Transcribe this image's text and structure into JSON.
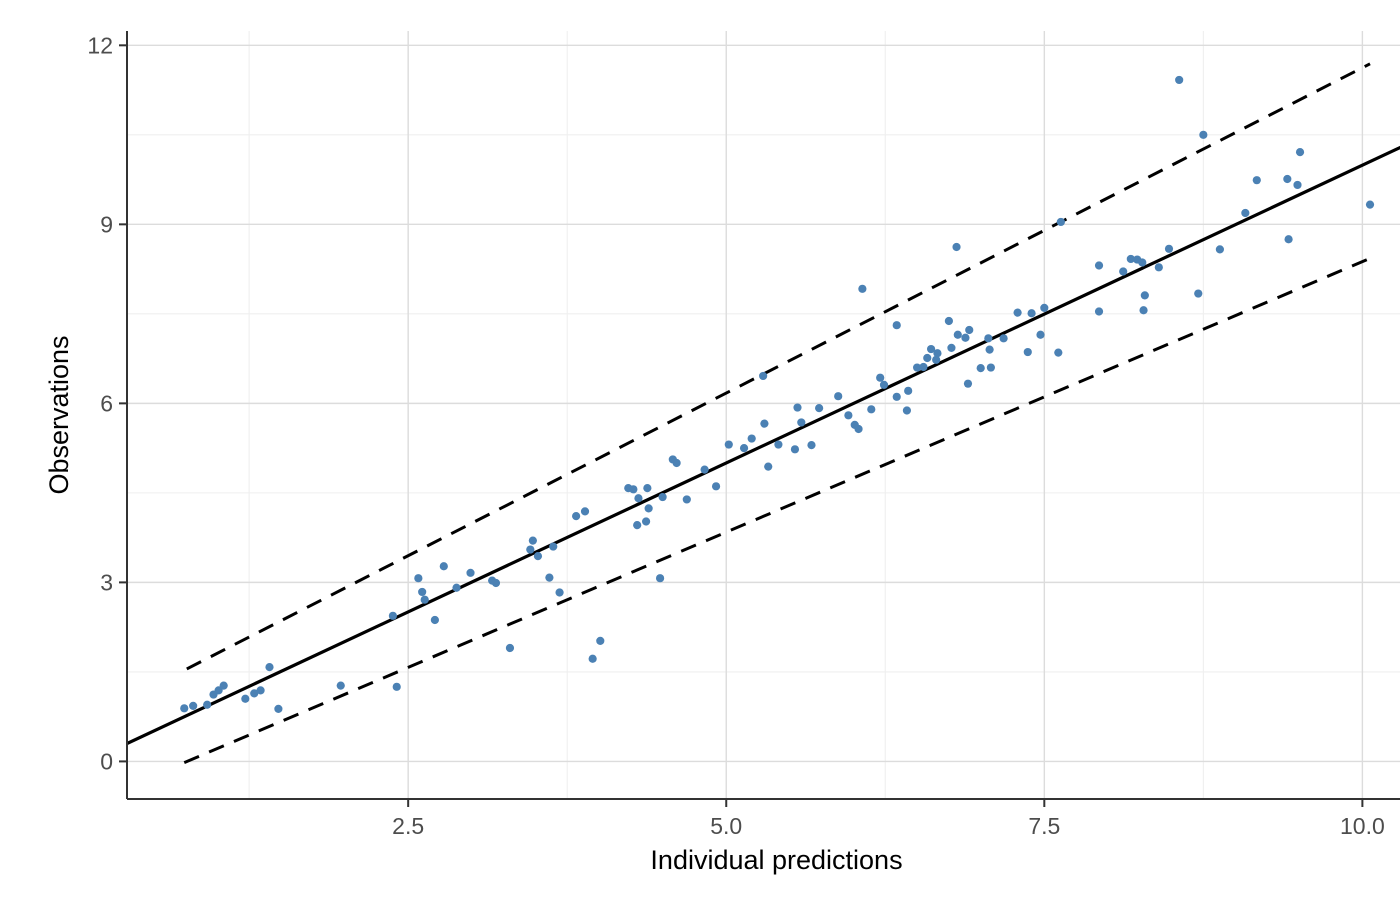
{
  "chart_data": {
    "type": "scatter",
    "title": "",
    "xlabel": "Individual predictions",
    "ylabel": "Observations",
    "x_tick_values": [
      2.5,
      5.0,
      7.5,
      10.0
    ],
    "x_tick_labels": [
      "2.5",
      "5.0",
      "7.5",
      "10.0"
    ],
    "x_minor_tick_values": [
      1.25,
      3.75,
      6.25,
      8.75
    ],
    "y_tick_values": [
      0,
      3,
      6,
      9,
      12
    ],
    "y_tick_labels": [
      "0",
      "3",
      "6",
      "9",
      "12"
    ],
    "y_minor_tick_values": [
      1.5,
      4.5,
      7.5,
      10.5
    ],
    "xlim": [
      0.29,
      10.5
    ],
    "ylim": [
      -0.63,
      12.24
    ],
    "grid": true,
    "legend_position": "none",
    "colors": {
      "point": "#4B81B4",
      "line": "#000000",
      "grid_major": "#DCDCDC",
      "grid_minor": "#EFEFEF",
      "axis_line": "#333333",
      "tick_mark": "#333333",
      "tick_label": "#4D4D4D",
      "axis_title": "#000000",
      "background": "#FFFFFF"
    },
    "lines": [
      {
        "name": "identity-line",
        "style": "solid",
        "points": [
          [
            0.29,
            0.3
          ],
          [
            10.5,
            10.49
          ]
        ]
      },
      {
        "name": "upper-prediction-interval",
        "style": "dashed",
        "points": [
          [
            0.76,
            1.55
          ],
          [
            10.06,
            11.69
          ]
        ]
      },
      {
        "name": "lower-prediction-interval",
        "style": "dashed",
        "points": [
          [
            0.74,
            -0.02
          ],
          [
            10.06,
            8.43
          ]
        ]
      }
    ],
    "points": [
      [
        0.74,
        0.89
      ],
      [
        0.81,
        0.93
      ],
      [
        0.92,
        0.95
      ],
      [
        0.97,
        1.12
      ],
      [
        1.01,
        1.19
      ],
      [
        1.05,
        1.27
      ],
      [
        1.22,
        1.05
      ],
      [
        1.29,
        1.14
      ],
      [
        1.34,
        1.19
      ],
      [
        1.41,
        1.58
      ],
      [
        1.48,
        0.88
      ],
      [
        1.97,
        1.27
      ],
      [
        2.38,
        2.44
      ],
      [
        2.41,
        1.25
      ],
      [
        2.58,
        3.07
      ],
      [
        2.61,
        2.84
      ],
      [
        2.63,
        2.71
      ],
      [
        2.71,
        2.37
      ],
      [
        2.78,
        3.27
      ],
      [
        2.88,
        2.91
      ],
      [
        2.99,
        3.16
      ],
      [
        3.16,
        3.03
      ],
      [
        3.19,
        2.99
      ],
      [
        3.3,
        1.9
      ],
      [
        3.46,
        3.55
      ],
      [
        3.48,
        3.7
      ],
      [
        3.52,
        3.44
      ],
      [
        3.61,
        3.08
      ],
      [
        3.64,
        3.6
      ],
      [
        3.69,
        2.83
      ],
      [
        3.82,
        4.11
      ],
      [
        3.89,
        4.19
      ],
      [
        3.95,
        1.72
      ],
      [
        4.01,
        2.02
      ],
      [
        4.23,
        4.58
      ],
      [
        4.27,
        4.56
      ],
      [
        4.3,
        3.96
      ],
      [
        4.31,
        4.41
      ],
      [
        4.37,
        4.02
      ],
      [
        4.38,
        4.58
      ],
      [
        4.39,
        4.24
      ],
      [
        4.48,
        3.07
      ],
      [
        4.5,
        4.43
      ],
      [
        4.58,
        5.06
      ],
      [
        4.61,
        5.0
      ],
      [
        4.69,
        4.39
      ],
      [
        4.83,
        4.89
      ],
      [
        4.92,
        4.61
      ],
      [
        5.02,
        5.31
      ],
      [
        5.14,
        5.25
      ],
      [
        5.2,
        5.41
      ],
      [
        5.29,
        6.46
      ],
      [
        5.3,
        5.66
      ],
      [
        5.33,
        4.94
      ],
      [
        5.41,
        5.31
      ],
      [
        5.54,
        5.23
      ],
      [
        5.56,
        5.93
      ],
      [
        5.59,
        5.68
      ],
      [
        5.67,
        5.3
      ],
      [
        5.73,
        5.92
      ],
      [
        5.88,
        6.12
      ],
      [
        5.96,
        5.8
      ],
      [
        6.01,
        5.64
      ],
      [
        6.04,
        5.57
      ],
      [
        6.07,
        7.92
      ],
      [
        6.14,
        5.9
      ],
      [
        6.21,
        6.43
      ],
      [
        6.24,
        6.31
      ],
      [
        6.34,
        7.31
      ],
      [
        6.34,
        6.11
      ],
      [
        6.42,
        5.88
      ],
      [
        6.43,
        6.21
      ],
      [
        6.5,
        6.6
      ],
      [
        6.55,
        6.61
      ],
      [
        6.58,
        6.76
      ],
      [
        6.61,
        6.91
      ],
      [
        6.65,
        6.73
      ],
      [
        6.66,
        6.84
      ],
      [
        6.77,
        6.93
      ],
      [
        6.75,
        7.38
      ],
      [
        6.81,
        8.62
      ],
      [
        6.82,
        7.15
      ],
      [
        6.88,
        7.1
      ],
      [
        6.9,
        6.33
      ],
      [
        6.91,
        7.23
      ],
      [
        7.0,
        6.59
      ],
      [
        7.06,
        7.09
      ],
      [
        7.07,
        6.9
      ],
      [
        7.08,
        6.6
      ],
      [
        7.18,
        7.09
      ],
      [
        7.29,
        7.52
      ],
      [
        7.37,
        6.86
      ],
      [
        7.4,
        7.51
      ],
      [
        7.47,
        7.15
      ],
      [
        7.5,
        7.6
      ],
      [
        7.61,
        6.85
      ],
      [
        7.63,
        9.04
      ],
      [
        7.93,
        8.31
      ],
      [
        7.93,
        7.54
      ],
      [
        8.12,
        8.21
      ],
      [
        8.18,
        8.42
      ],
      [
        8.23,
        8.41
      ],
      [
        8.27,
        8.36
      ],
      [
        8.28,
        7.56
      ],
      [
        8.29,
        7.81
      ],
      [
        8.4,
        8.28
      ],
      [
        8.48,
        8.59
      ],
      [
        8.56,
        11.42
      ],
      [
        8.71,
        7.84
      ],
      [
        8.75,
        10.5
      ],
      [
        8.88,
        8.58
      ],
      [
        9.08,
        9.19
      ],
      [
        9.17,
        9.74
      ],
      [
        9.41,
        9.76
      ],
      [
        9.49,
        9.66
      ],
      [
        9.42,
        8.75
      ],
      [
        9.51,
        10.21
      ],
      [
        10.06,
        9.33
      ]
    ]
  }
}
